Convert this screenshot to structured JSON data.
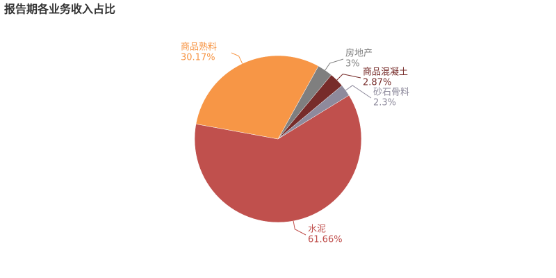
{
  "chart_data": {
    "type": "pie",
    "title": "报告期各业务收入占比",
    "categories": [
      "房地产",
      "商品混凝土",
      "砂石骨料",
      "水泥",
      "商品熟料"
    ],
    "values": [
      3,
      2.87,
      2.3,
      61.66,
      30.17
    ],
    "value_labels": [
      "3%",
      "2.87%",
      "2.3%",
      "61.66%",
      "30.17%"
    ],
    "colors": [
      "#7f7f7f",
      "#772c2a",
      "#8e8a9c",
      "#c0504d",
      "#f79646"
    ]
  }
}
